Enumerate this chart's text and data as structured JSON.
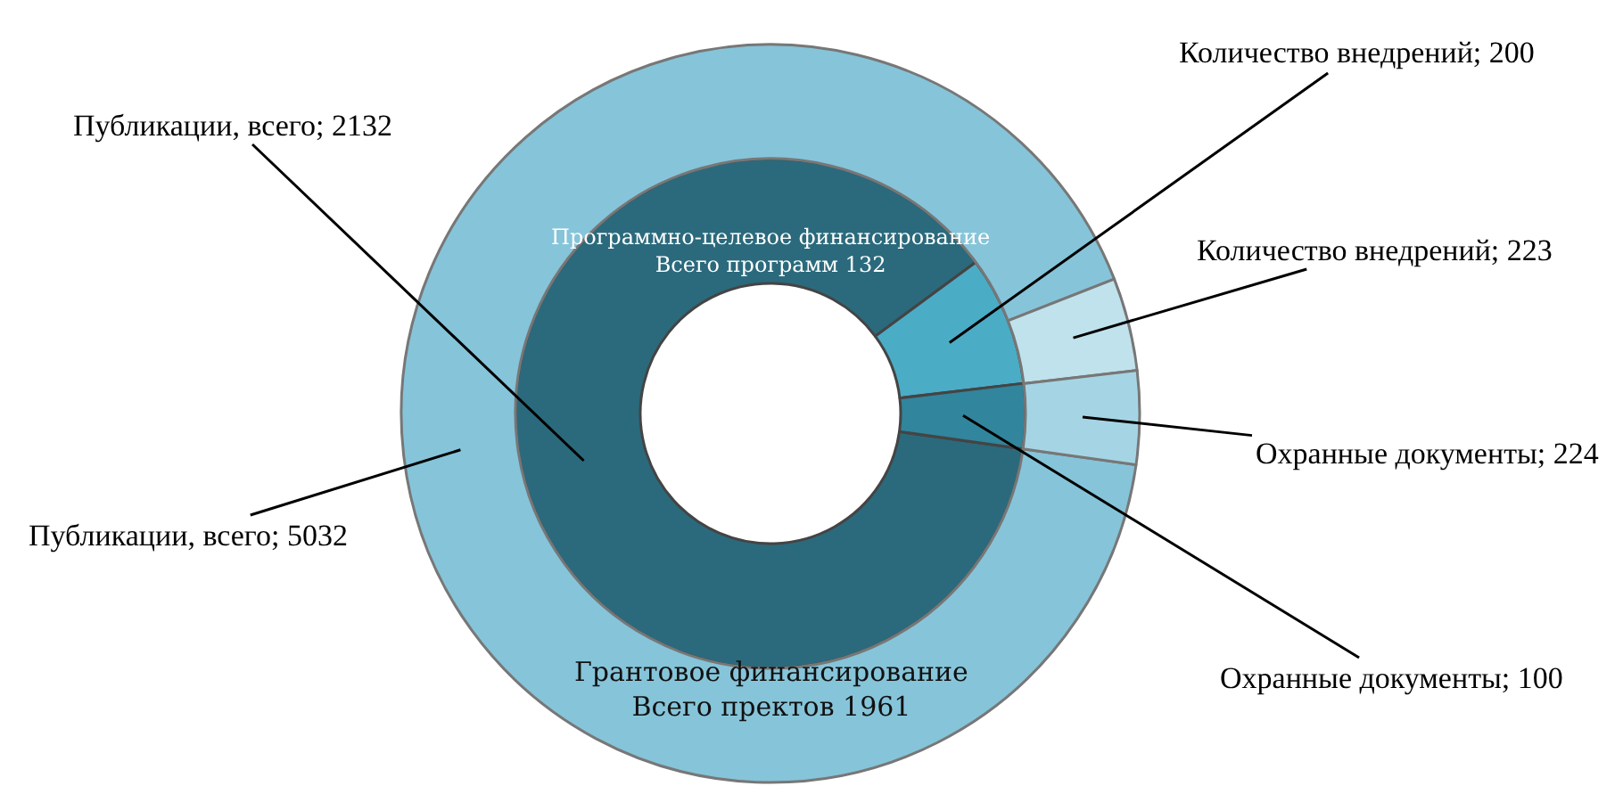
{
  "chart_data": {
    "type": "donut",
    "series": [
      {
        "name": "Программно-целевое финансирование\nВсего программ 132",
        "values": [
          2132,
          200,
          100
        ],
        "colors": [
          "#2b6a7c",
          "#4bacc6",
          "#31859c"
        ],
        "value_labels": [
          "Публикации, всего; 2132",
          "Количество внедрений; 200",
          "Охранные документы; 100"
        ]
      },
      {
        "name": "Грантовое финансирование\nВсего пректов 1961",
        "values": [
          5032,
          223,
          224
        ],
        "colors": [
          "#86c4d9",
          "#c0e2ec",
          "#a5d5e4"
        ],
        "value_labels": [
          "Публикации, всего; 5032",
          "Количество внедрений; 223",
          "Охранные документы; 224"
        ]
      }
    ],
    "legend": false
  }
}
